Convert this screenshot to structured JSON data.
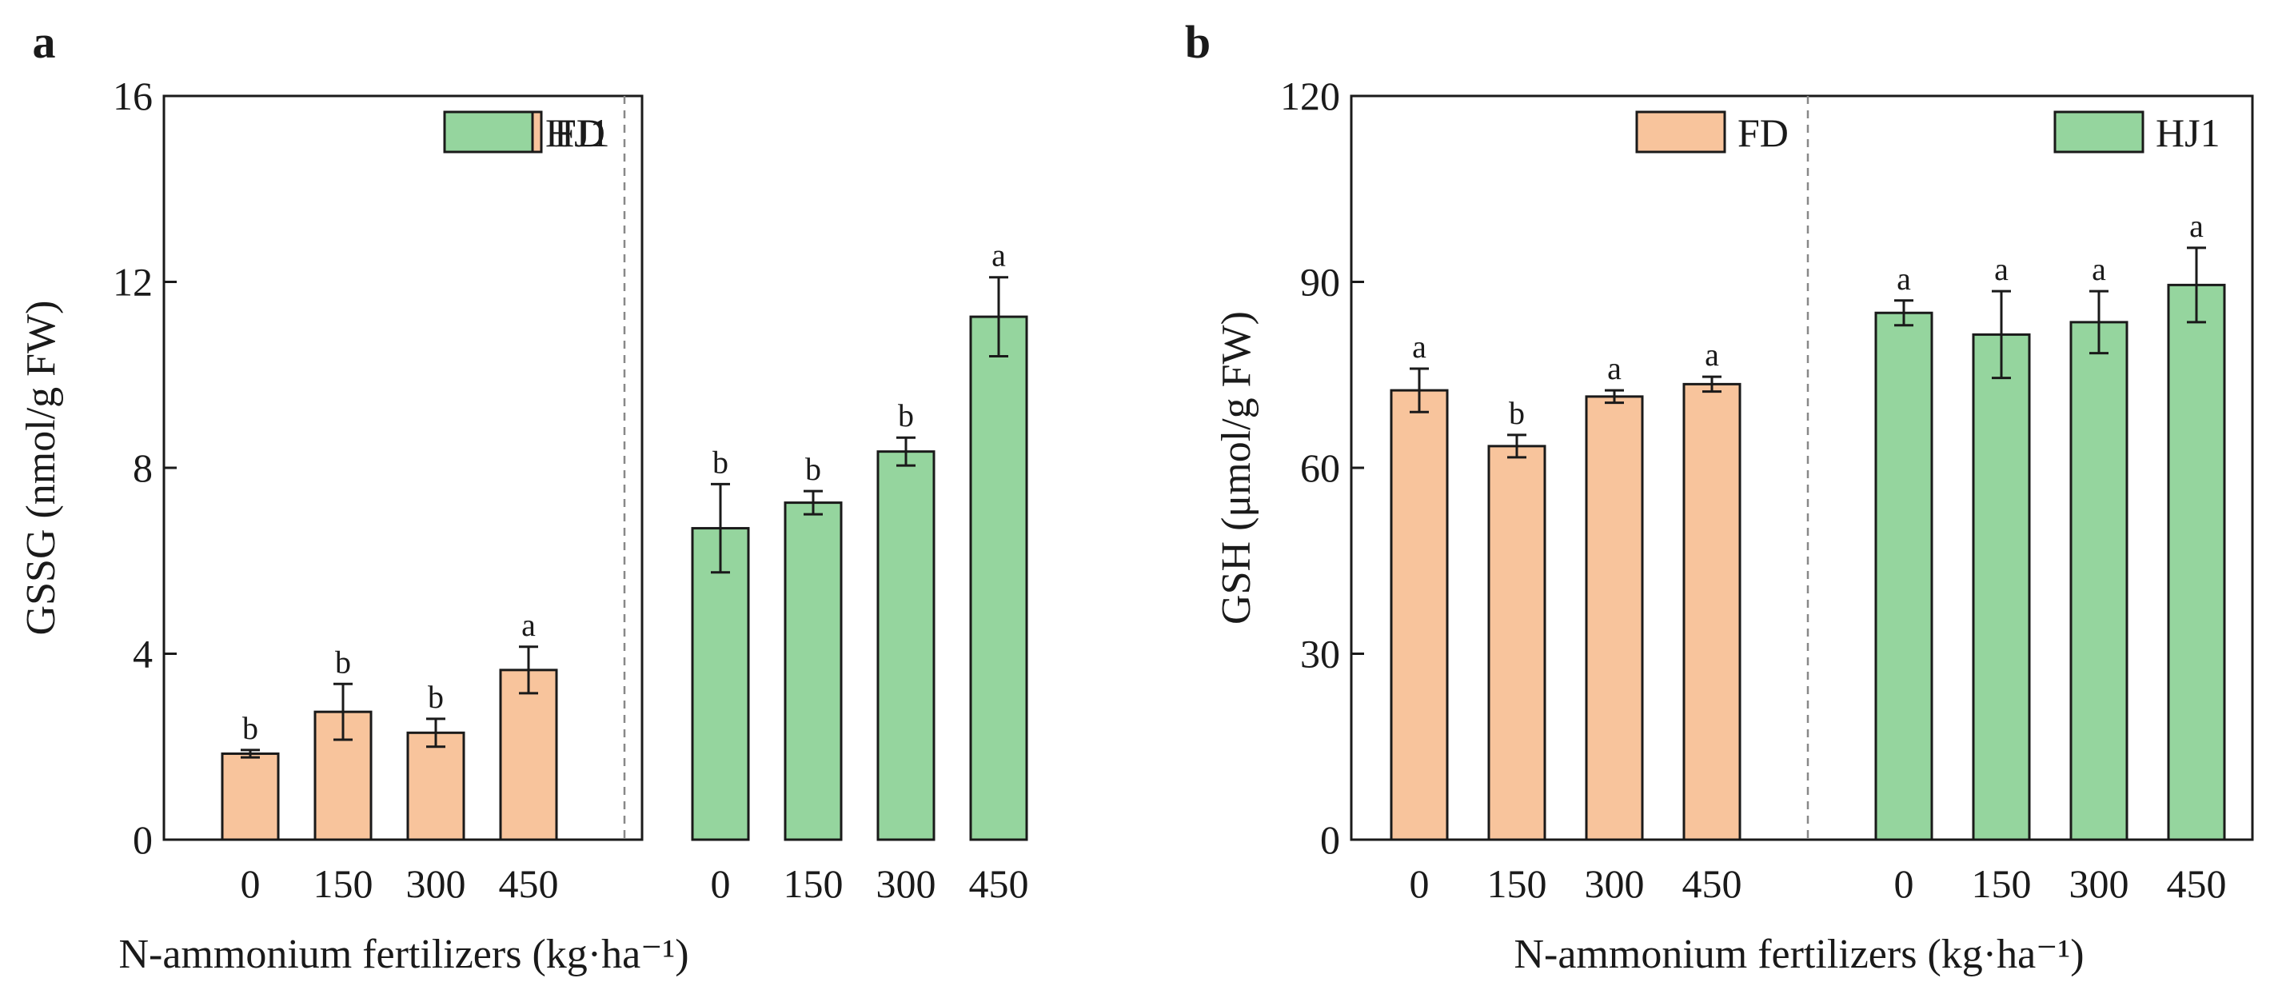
{
  "colors": {
    "FD": "#f8c49c",
    "HJ1": "#95d59e",
    "stroke": "#1a1a1a",
    "divider": "#888888"
  },
  "chart_data": [
    {
      "type": "bar",
      "panel_label": "a",
      "ylabel": "GSSG (nmol/g FW)",
      "xlabel": "N-ammonium fertilizers (kg·ha⁻¹)",
      "ylim": [
        0,
        16
      ],
      "yticks": [
        0,
        4,
        8,
        12,
        16
      ],
      "grid": false,
      "categories": [
        "0",
        "150",
        "300",
        "450"
      ],
      "series": [
        {
          "name": "FD",
          "values": [
            1.85,
            2.75,
            2.3,
            3.65
          ],
          "errors": [
            0.08,
            0.6,
            0.3,
            0.5
          ],
          "letters": [
            "b",
            "b",
            "b",
            "a"
          ]
        },
        {
          "name": "HJ1",
          "values": [
            6.7,
            7.25,
            8.35,
            11.25
          ],
          "errors": [
            0.95,
            0.25,
            0.3,
            0.85
          ],
          "letters": [
            "b",
            "b",
            "b",
            "a"
          ]
        }
      ]
    },
    {
      "type": "bar",
      "panel_label": "b",
      "ylabel": "GSH (μmol/g FW)",
      "xlabel": "N-ammonium fertilizers (kg·ha⁻¹)",
      "ylim": [
        0,
        120
      ],
      "yticks": [
        0,
        30,
        60,
        90,
        120
      ],
      "grid": false,
      "categories": [
        "0",
        "150",
        "300",
        "450"
      ],
      "series": [
        {
          "name": "FD",
          "values": [
            72.5,
            63.5,
            71.5,
            73.5
          ],
          "errors": [
            3.5,
            1.8,
            1.0,
            1.2
          ],
          "letters": [
            "a",
            "b",
            "a",
            "a"
          ]
        },
        {
          "name": "HJ1",
          "values": [
            85.0,
            81.5,
            83.5,
            89.5
          ],
          "errors": [
            2.0,
            7.0,
            5.0,
            6.0
          ],
          "letters": [
            "a",
            "a",
            "a",
            "a"
          ]
        }
      ]
    }
  ]
}
